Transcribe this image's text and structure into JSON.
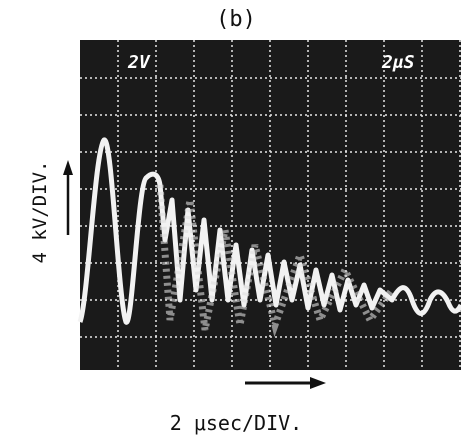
{
  "figure": {
    "label": "(b)"
  },
  "screen": {
    "left_label": "2V",
    "right_label": "2μS"
  },
  "axes": {
    "y_label": "4 kV/DIV.",
    "x_label": "2 μsec/DIV."
  }
}
